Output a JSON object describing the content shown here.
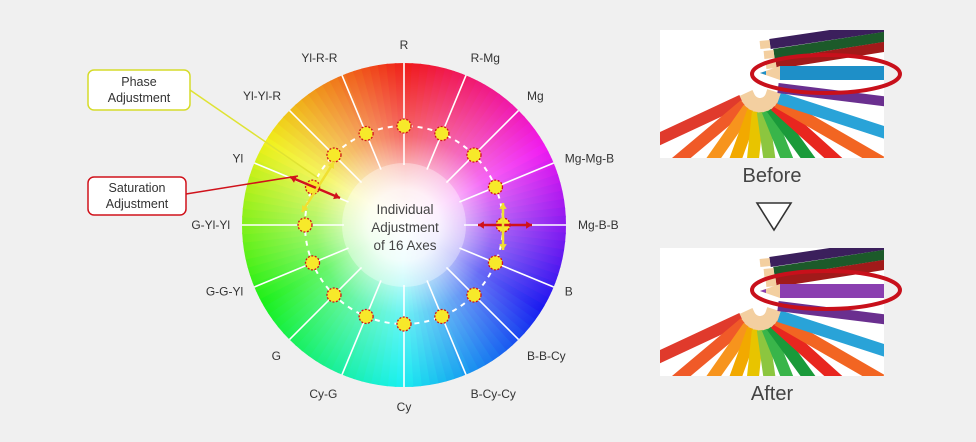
{
  "diagram": {
    "center_label": [
      "Individual",
      "Adjustment",
      "of 16 Axes"
    ],
    "axes": [
      "R",
      "R-Mg",
      "Mg",
      "Mg-Mg-B",
      "Mg-B-B",
      "B",
      "B-B-Cy",
      "B-Cy-Cy",
      "Cy",
      "Cy-G",
      "G",
      "G-G-Yl",
      "G-Yl-Yl",
      "Yl",
      "Yl-Yl-R",
      "Yl-R-R"
    ],
    "phase_box": [
      "Phase",
      "Adjustment"
    ],
    "saturation_box": [
      "Saturation",
      "Adjustment"
    ],
    "colors": {
      "phase_border": "#d6dc2a",
      "saturation_border": "#d0121b",
      "arrow_red": "#d0121b",
      "arrow_yellow": "#f0e030",
      "dot_fill": "#f7e92a",
      "dot_ring": "#d0121b"
    }
  },
  "photos": {
    "before_caption": "Before",
    "after_caption": "After",
    "transition_icon": "down-triangle-icon",
    "highlight_color": "#c8101b",
    "before_pencil_color": "#1e8fc8",
    "after_pencil_color": "#8a3fb0"
  }
}
